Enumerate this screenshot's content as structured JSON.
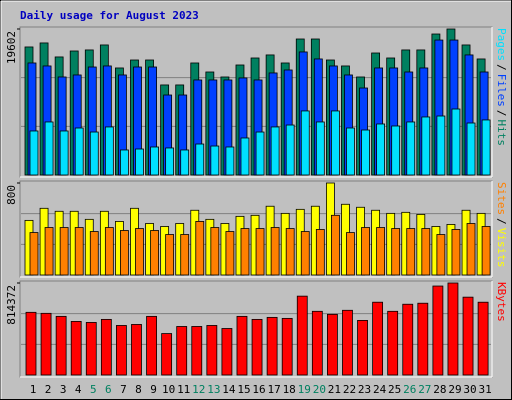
{
  "chart_data": [
    {
      "type": "bar",
      "title": "Daily usage for August 2023",
      "title_color": "#0000c0",
      "ylim": [
        0,
        19602
      ],
      "yticks": [
        19602
      ],
      "legend_separator": "/",
      "series": [
        {
          "name": "Hits",
          "color": "#008060",
          "values": [
            17190,
            17730,
            15850,
            16650,
            16790,
            17460,
            14370,
            15440,
            15440,
            12090,
            12090,
            15040,
            13830,
            13160,
            14770,
            15710,
            16120,
            15040,
            18260,
            18260,
            15440,
            14640,
            13160,
            16380,
            15710,
            16790,
            16790,
            18930,
            19602,
            17460,
            15580
          ]
        },
        {
          "name": "Files",
          "color": "#0040ff",
          "values": [
            15040,
            14640,
            13160,
            13430,
            14500,
            14640,
            13430,
            14500,
            14500,
            10740,
            10740,
            12760,
            12760,
            12760,
            13030,
            12760,
            13700,
            14100,
            16520,
            15580,
            14640,
            13430,
            11680,
            14370,
            14370,
            13830,
            14370,
            18120,
            18120,
            16120,
            13830
          ]
        },
        {
          "name": "Pages",
          "color": "#00e0ff",
          "values": [
            5910,
            7120,
            5910,
            6310,
            5770,
            6450,
            3360,
            3490,
            3760,
            3630,
            3360,
            4160,
            3890,
            3760,
            4970,
            5770,
            6450,
            6710,
            8600,
            7120,
            8600,
            6310,
            6040,
            6850,
            6580,
            7120,
            7790,
            7920,
            8860,
            6980,
            7390
          ]
        }
      ]
    },
    {
      "type": "bar",
      "ylim": [
        0,
        800
      ],
      "yticks": [
        800
      ],
      "legend_separator": "/",
      "series": [
        {
          "name": "Visits",
          "color": "#ffff00",
          "values": [
            475,
            580,
            554,
            554,
            484,
            554,
            466,
            580,
            448,
            422,
            448,
            563,
            484,
            448,
            510,
            519,
            598,
            536,
            571,
            598,
            800,
            615,
            589,
            563,
            536,
            545,
            527,
            422,
            440,
            563,
            536
          ]
        },
        {
          "name": "Sites",
          "color": "#ff8000",
          "values": [
            369,
            413,
            413,
            413,
            378,
            413,
            387,
            404,
            387,
            352,
            352,
            466,
            413,
            378,
            404,
            404,
            413,
            404,
            378,
            396,
            519,
            369,
            413,
            413,
            404,
            404,
            404,
            352,
            396,
            448,
            422
          ]
        }
      ]
    },
    {
      "type": "bar",
      "ylim": [
        0,
        814372
      ],
      "yticks": [
        814372
      ],
      "categories": [
        "1",
        "2",
        "3",
        "4",
        "5",
        "6",
        "7",
        "8",
        "9",
        "10",
        "11",
        "12",
        "13",
        "14",
        "15",
        "16",
        "17",
        "18",
        "19",
        "20",
        "21",
        "22",
        "23",
        "24",
        "25",
        "26",
        "27",
        "28",
        "29",
        "30",
        "31"
      ],
      "category_colors": [
        "#000000",
        "#000000",
        "#000000",
        "#000000",
        "#008060",
        "#008060",
        "#000000",
        "#000000",
        "#000000",
        "#000000",
        "#000000",
        "#008060",
        "#008060",
        "#000000",
        "#000000",
        "#000000",
        "#000000",
        "#000000",
        "#008060",
        "#008060",
        "#000000",
        "#000000",
        "#000000",
        "#000000",
        "#000000",
        "#008060",
        "#008060",
        "#000000",
        "#000000",
        "#000000",
        "#000000"
      ],
      "series": [
        {
          "name": "KBytes",
          "color": "#ff0000",
          "values": [
            554860,
            545910,
            519060,
            474320,
            465370,
            492220,
            438520,
            447470,
            519060,
            366920,
            429570,
            429570,
            438520,
            411670,
            519060,
            492220,
            510110,
            501160,
            698040,
            563810,
            536960,
            572760,
            483270,
            644350,
            563810,
            626450,
            635400,
            787530,
            814372,
            689090,
            644350
          ]
        }
      ]
    }
  ]
}
